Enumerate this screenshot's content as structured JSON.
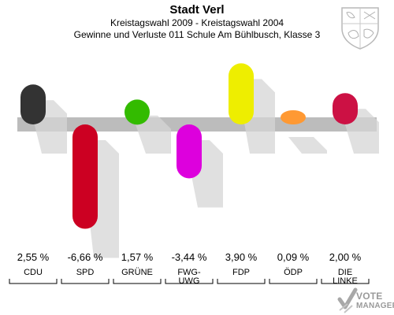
{
  "header": {
    "title": "Stadt Verl",
    "subtitle": "Kreistagswahl 2009 - Kreistagswahl 2004",
    "description": "Gewinne und Verluste 011 Schule Am Bühlbusch, Klasse 3"
  },
  "logo": {
    "line1": "VOTE",
    "line2": "MANAGER"
  },
  "chart_data": {
    "type": "bar",
    "title": "Stadt Verl",
    "subtitle": "Kreistagswahl 2009 - Kreistagswahl 2004",
    "description": "Gewinne und Verluste 011 Schule Am Bühlbusch, Klasse 3",
    "categories": [
      "CDU",
      "SPD",
      "GRÜNE",
      "FWG-UWG",
      "FDP",
      "ÖDP",
      "DIE LINKE"
    ],
    "category_labels": [
      [
        "CDU"
      ],
      [
        "SPD"
      ],
      [
        "GRÜNE"
      ],
      [
        "FWG-",
        "UWG"
      ],
      [
        "FDP"
      ],
      [
        "ÖDP"
      ],
      [
        "DIE",
        "LINKE"
      ]
    ],
    "values": [
      2.55,
      -6.66,
      1.57,
      -3.44,
      3.9,
      0.09,
      2.0
    ],
    "value_labels": [
      "2,55 %",
      "-6,66 %",
      "1,57 %",
      "-3,44 %",
      "3,90 %",
      "0,09 %",
      "2,00 %"
    ],
    "colors": [
      "#333333",
      "#cc0022",
      "#33bb00",
      "#dd00dd",
      "#eeee00",
      "#ff9933",
      "#cc1144"
    ],
    "ylim": [
      -6.66,
      3.9
    ],
    "unit": "%",
    "grid": false,
    "legend": "none"
  }
}
